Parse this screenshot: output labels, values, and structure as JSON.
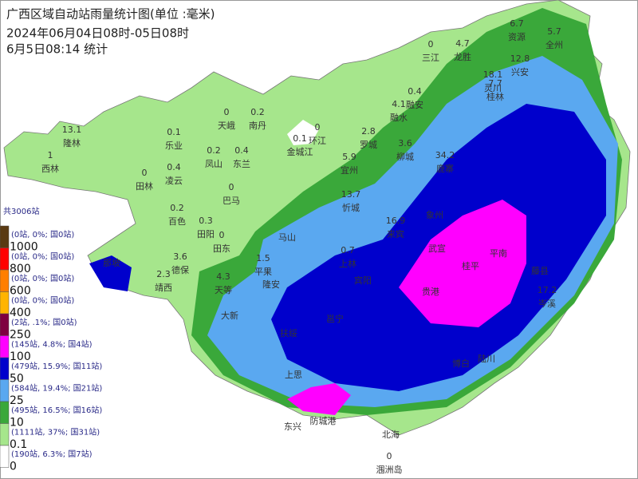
{
  "header": {
    "title": "广西区域自动站雨量统计图(单位 :毫米)",
    "period": "2024年06月04日08时-05日08时",
    "stat_time": "6月5日08:14  统计"
  },
  "legend": {
    "total": "共3006站",
    "swatches": [
      {
        "color": "#5a3a12",
        "stats": "(0站, 0%; 国0站)"
      },
      {
        "color": "#ff0000",
        "stats": "(0站, 0%; 国0站)"
      },
      {
        "color": "#ff7f00",
        "stats": "(0站, 0%; 国0站)"
      },
      {
        "color": "#ffb400",
        "stats": "(0站, 0%; 国0站)"
      },
      {
        "color": "#7f0040",
        "stats": "(2站, .1%; 国0站)"
      },
      {
        "color": "#ff00ff",
        "stats": "(145站, 4.8%; 国4站)"
      },
      {
        "color": "#0000cc",
        "stats": "(479站, 15.9%; 国11站)"
      },
      {
        "color": "#5aa8f0",
        "stats": "(584站, 19.4%; 国21站)"
      },
      {
        "color": "#3aa83a",
        "stats": "(495站, 16.5%; 国16站)"
      },
      {
        "color": "#a6e68c",
        "stats": "(1111站, 37%; 国31站)"
      },
      {
        "color": "#ffffff",
        "stats": "(190站, 6.3%; 国7站)"
      }
    ],
    "thresholds": [
      1000,
      800,
      600,
      400,
      250,
      100,
      50,
      25,
      10,
      0.1,
      0
    ]
  },
  "stations": [
    {
      "name": "天峨",
      "value": 0
    },
    {
      "name": "南丹",
      "value": 0.2
    },
    {
      "name": "乐业",
      "value": 0.1
    },
    {
      "name": "凤山",
      "value": 0.2
    },
    {
      "name": "东兰",
      "value": 0.4
    },
    {
      "name": "隆林",
      "value": 13.1
    },
    {
      "name": "西林",
      "value": 1
    },
    {
      "name": "田林",
      "value": 0
    },
    {
      "name": "凌云",
      "value": 0.4
    },
    {
      "name": "巴马",
      "value": 0
    },
    {
      "name": "百色",
      "value": 0.2
    },
    {
      "name": "田阳",
      "value": 0.3
    },
    {
      "name": "田东",
      "value": 0
    },
    {
      "name": "德保",
      "value": 3.6
    },
    {
      "name": "靖西",
      "value": 2.3
    },
    {
      "name": "天等",
      "value": 4.3
    },
    {
      "name": "平果",
      "value": 1.5
    },
    {
      "name": "金城江",
      "value": 0.1
    },
    {
      "name": "环江",
      "value": 0
    },
    {
      "name": "宜州",
      "value": 5.9
    },
    {
      "name": "罗城",
      "value": 2.8
    },
    {
      "name": "融水",
      "value": 4.1
    },
    {
      "name": "融安",
      "value": 0.4
    },
    {
      "name": "三江",
      "value": 0
    },
    {
      "name": "龙胜",
      "value": 4.7
    },
    {
      "name": "资源",
      "value": 6.7
    },
    {
      "name": "全州",
      "value": 5.7
    },
    {
      "name": "兴安",
      "value": 12.8
    },
    {
      "name": "灵川",
      "value": 18.1
    },
    {
      "name": "桂林",
      "value": 7.7
    },
    {
      "name": "柳城",
      "value": 3.6
    },
    {
      "name": "鹿寨",
      "value": 34.2
    },
    {
      "name": "忻城",
      "value": 13.7
    },
    {
      "name": "上林",
      "value": 0.7
    },
    {
      "name": "来宾",
      "value": 16.9
    },
    {
      "name": "岑溪",
      "value": 17.2
    },
    {
      "name": "涠洲岛",
      "value": 0
    }
  ],
  "places": [
    "那坡",
    "隆安",
    "大新",
    "马山",
    "宾阳",
    "象州",
    "桂平",
    "武宣",
    "贵港",
    "藤县",
    "平南",
    "博白",
    "陆川",
    "北海",
    "东兴",
    "防城港",
    "上思",
    "扶绥",
    "邕宁"
  ]
}
